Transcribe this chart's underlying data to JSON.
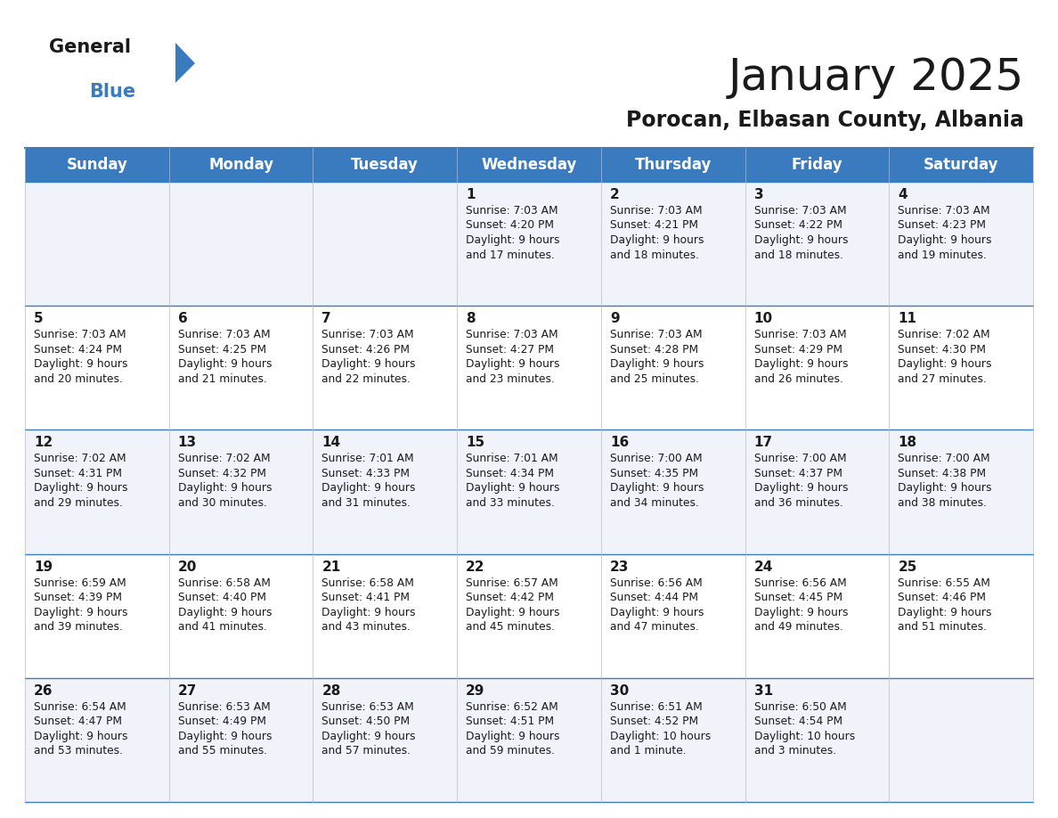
{
  "title": "January 2025",
  "subtitle": "Porocan, Elbasan County, Albania",
  "header_color": "#3a7abf",
  "header_text_color": "#ffffff",
  "day_headers": [
    "Sunday",
    "Monday",
    "Tuesday",
    "Wednesday",
    "Thursday",
    "Friday",
    "Saturday"
  ],
  "title_fontsize": 36,
  "subtitle_fontsize": 17,
  "header_fontsize": 12,
  "day_num_fontsize": 11,
  "cell_fontsize": 8.8,
  "logo_general_fontsize": 15,
  "logo_blue_fontsize": 15,
  "weeks": [
    [
      {
        "day": "",
        "sunrise": "",
        "sunset": "",
        "daylight": ""
      },
      {
        "day": "",
        "sunrise": "",
        "sunset": "",
        "daylight": ""
      },
      {
        "day": "",
        "sunrise": "",
        "sunset": "",
        "daylight": ""
      },
      {
        "day": "1",
        "sunrise": "Sunrise: 7:03 AM",
        "sunset": "Sunset: 4:20 PM",
        "daylight": "Daylight: 9 hours\nand 17 minutes."
      },
      {
        "day": "2",
        "sunrise": "Sunrise: 7:03 AM",
        "sunset": "Sunset: 4:21 PM",
        "daylight": "Daylight: 9 hours\nand 18 minutes."
      },
      {
        "day": "3",
        "sunrise": "Sunrise: 7:03 AM",
        "sunset": "Sunset: 4:22 PM",
        "daylight": "Daylight: 9 hours\nand 18 minutes."
      },
      {
        "day": "4",
        "sunrise": "Sunrise: 7:03 AM",
        "sunset": "Sunset: 4:23 PM",
        "daylight": "Daylight: 9 hours\nand 19 minutes."
      }
    ],
    [
      {
        "day": "5",
        "sunrise": "Sunrise: 7:03 AM",
        "sunset": "Sunset: 4:24 PM",
        "daylight": "Daylight: 9 hours\nand 20 minutes."
      },
      {
        "day": "6",
        "sunrise": "Sunrise: 7:03 AM",
        "sunset": "Sunset: 4:25 PM",
        "daylight": "Daylight: 9 hours\nand 21 minutes."
      },
      {
        "day": "7",
        "sunrise": "Sunrise: 7:03 AM",
        "sunset": "Sunset: 4:26 PM",
        "daylight": "Daylight: 9 hours\nand 22 minutes."
      },
      {
        "day": "8",
        "sunrise": "Sunrise: 7:03 AM",
        "sunset": "Sunset: 4:27 PM",
        "daylight": "Daylight: 9 hours\nand 23 minutes."
      },
      {
        "day": "9",
        "sunrise": "Sunrise: 7:03 AM",
        "sunset": "Sunset: 4:28 PM",
        "daylight": "Daylight: 9 hours\nand 25 minutes."
      },
      {
        "day": "10",
        "sunrise": "Sunrise: 7:03 AM",
        "sunset": "Sunset: 4:29 PM",
        "daylight": "Daylight: 9 hours\nand 26 minutes."
      },
      {
        "day": "11",
        "sunrise": "Sunrise: 7:02 AM",
        "sunset": "Sunset: 4:30 PM",
        "daylight": "Daylight: 9 hours\nand 27 minutes."
      }
    ],
    [
      {
        "day": "12",
        "sunrise": "Sunrise: 7:02 AM",
        "sunset": "Sunset: 4:31 PM",
        "daylight": "Daylight: 9 hours\nand 29 minutes."
      },
      {
        "day": "13",
        "sunrise": "Sunrise: 7:02 AM",
        "sunset": "Sunset: 4:32 PM",
        "daylight": "Daylight: 9 hours\nand 30 minutes."
      },
      {
        "day": "14",
        "sunrise": "Sunrise: 7:01 AM",
        "sunset": "Sunset: 4:33 PM",
        "daylight": "Daylight: 9 hours\nand 31 minutes."
      },
      {
        "day": "15",
        "sunrise": "Sunrise: 7:01 AM",
        "sunset": "Sunset: 4:34 PM",
        "daylight": "Daylight: 9 hours\nand 33 minutes."
      },
      {
        "day": "16",
        "sunrise": "Sunrise: 7:00 AM",
        "sunset": "Sunset: 4:35 PM",
        "daylight": "Daylight: 9 hours\nand 34 minutes."
      },
      {
        "day": "17",
        "sunrise": "Sunrise: 7:00 AM",
        "sunset": "Sunset: 4:37 PM",
        "daylight": "Daylight: 9 hours\nand 36 minutes."
      },
      {
        "day": "18",
        "sunrise": "Sunrise: 7:00 AM",
        "sunset": "Sunset: 4:38 PM",
        "daylight": "Daylight: 9 hours\nand 38 minutes."
      }
    ],
    [
      {
        "day": "19",
        "sunrise": "Sunrise: 6:59 AM",
        "sunset": "Sunset: 4:39 PM",
        "daylight": "Daylight: 9 hours\nand 39 minutes."
      },
      {
        "day": "20",
        "sunrise": "Sunrise: 6:58 AM",
        "sunset": "Sunset: 4:40 PM",
        "daylight": "Daylight: 9 hours\nand 41 minutes."
      },
      {
        "day": "21",
        "sunrise": "Sunrise: 6:58 AM",
        "sunset": "Sunset: 4:41 PM",
        "daylight": "Daylight: 9 hours\nand 43 minutes."
      },
      {
        "day": "22",
        "sunrise": "Sunrise: 6:57 AM",
        "sunset": "Sunset: 4:42 PM",
        "daylight": "Daylight: 9 hours\nand 45 minutes."
      },
      {
        "day": "23",
        "sunrise": "Sunrise: 6:56 AM",
        "sunset": "Sunset: 4:44 PM",
        "daylight": "Daylight: 9 hours\nand 47 minutes."
      },
      {
        "day": "24",
        "sunrise": "Sunrise: 6:56 AM",
        "sunset": "Sunset: 4:45 PM",
        "daylight": "Daylight: 9 hours\nand 49 minutes."
      },
      {
        "day": "25",
        "sunrise": "Sunrise: 6:55 AM",
        "sunset": "Sunset: 4:46 PM",
        "daylight": "Daylight: 9 hours\nand 51 minutes."
      }
    ],
    [
      {
        "day": "26",
        "sunrise": "Sunrise: 6:54 AM",
        "sunset": "Sunset: 4:47 PM",
        "daylight": "Daylight: 9 hours\nand 53 minutes."
      },
      {
        "day": "27",
        "sunrise": "Sunrise: 6:53 AM",
        "sunset": "Sunset: 4:49 PM",
        "daylight": "Daylight: 9 hours\nand 55 minutes."
      },
      {
        "day": "28",
        "sunrise": "Sunrise: 6:53 AM",
        "sunset": "Sunset: 4:50 PM",
        "daylight": "Daylight: 9 hours\nand 57 minutes."
      },
      {
        "day": "29",
        "sunrise": "Sunrise: 6:52 AM",
        "sunset": "Sunset: 4:51 PM",
        "daylight": "Daylight: 9 hours\nand 59 minutes."
      },
      {
        "day": "30",
        "sunrise": "Sunrise: 6:51 AM",
        "sunset": "Sunset: 4:52 PM",
        "daylight": "Daylight: 10 hours\nand 1 minute."
      },
      {
        "day": "31",
        "sunrise": "Sunrise: 6:50 AM",
        "sunset": "Sunset: 4:54 PM",
        "daylight": "Daylight: 10 hours\nand 3 minutes."
      },
      {
        "day": "",
        "sunrise": "",
        "sunset": "",
        "daylight": ""
      }
    ]
  ]
}
